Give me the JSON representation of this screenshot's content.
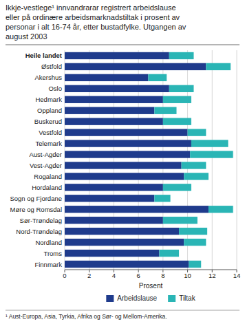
{
  "chart_data": {
    "type": "bar",
    "orientation": "horizontal",
    "stacked": true,
    "title": "Ikkje-vestlege¹ innvandrarar registrert arbeidslause\neller på ordinære arbeidsmarknadstiltak i prosent av\npersonar i alt 16-74 år, etter bustadfylke. Utgangen av\naugust 2003",
    "footnote": "¹ Aust-Europa, Asia, Tyrkia, Afrika og Sør- og Mellom-Amerika.",
    "xlabel": "Prosent",
    "xlim": [
      0,
      14
    ],
    "xticks": [
      0,
      2,
      4,
      6,
      8,
      10,
      12,
      14
    ],
    "categories": [
      "Heile landet",
      "Østfold",
      "Akershus",
      "Oslo",
      "Hedmark",
      "Oppland",
      "Buskerud",
      "Vestfold",
      "Telemark",
      "Aust-Agder",
      "Vest-Agder",
      "Rogaland",
      "Hordaland",
      "Sogn og Fjordane",
      "Møre og Romsdal",
      "Sør-Trøndelag",
      "Nord-Trøndelag",
      "Nordland",
      "Troms",
      "Finnmark"
    ],
    "series": [
      {
        "name": "Arbeidslause",
        "color": "#1f3b8c",
        "values": [
          8.5,
          11.5,
          6.8,
          8.5,
          8.0,
          7.3,
          8.0,
          10.0,
          10.3,
          10.2,
          9.5,
          9.7,
          8.0,
          7.3,
          11.7,
          8.0,
          9.3,
          9.7,
          7.7,
          10.1
        ]
      },
      {
        "name": "Tiltak",
        "color": "#2ab5b5",
        "values": [
          2.0,
          2.0,
          1.5,
          2.0,
          2.3,
          1.8,
          2.3,
          1.5,
          3.0,
          3.5,
          2.0,
          2.0,
          2.3,
          1.3,
          2.0,
          2.8,
          2.3,
          1.8,
          1.6,
          1.0
        ]
      }
    ],
    "grid": true,
    "legend": "bottom"
  }
}
